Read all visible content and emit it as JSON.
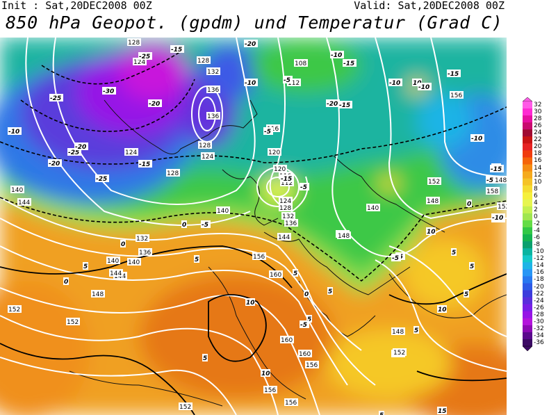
{
  "header": {
    "init": "Init : Sat,20DEC2008 00Z",
    "valid": "Valid: Sat,20DEC2008 00Z",
    "title": "850 hPa Geopot. (gpdm) und Temperatur (Grad C)"
  },
  "colorbar": {
    "labels": [
      "32",
      "30",
      "28",
      "26",
      "24",
      "22",
      "20",
      "18",
      "16",
      "14",
      "12",
      "10",
      "8",
      "6",
      "4",
      "2",
      "0",
      "-2",
      "-4",
      "-6",
      "-8",
      "-10",
      "-12",
      "-14",
      "-16",
      "-18",
      "-20",
      "-22",
      "-24",
      "-26",
      "-28",
      "-30",
      "-32",
      "-34",
      "-36"
    ],
    "colors": [
      "#ff5be6",
      "#ff2ad2",
      "#e60fa0",
      "#c80a6e",
      "#a00a32",
      "#c81414",
      "#e62323",
      "#f03c0f",
      "#f5640a",
      "#f58c14",
      "#f5aa1e",
      "#f5c328",
      "#f5dc32",
      "#f5f03c",
      "#e6f550",
      "#c3f050",
      "#a0e650",
      "#64dc46",
      "#32c846",
      "#14b450",
      "#0aa06e",
      "#0ab4a0",
      "#14c8c8",
      "#1eb4e6",
      "#2896f5",
      "#2878f0",
      "#2d5ae6",
      "#3c3cdc",
      "#5a2ddc",
      "#781ee6",
      "#9614e6",
      "#b414dc",
      "#8c0ab4",
      "#5a0a8c",
      "#3c0a64"
    ]
  },
  "map": {
    "geopotential_labels": [
      "128",
      "124",
      "128",
      "132",
      "136",
      "136",
      "128",
      "112",
      "108",
      "116",
      "120",
      "124",
      "124",
      "128",
      "120",
      "116",
      "112",
      "124",
      "128",
      "132",
      "136",
      "140",
      "140",
      "144",
      "140",
      "144",
      "148",
      "152",
      "144",
      "148",
      "152",
      "156",
      "160",
      "156",
      "160",
      "152",
      "148",
      "152",
      "156",
      "160",
      "156",
      "132",
      "136",
      "140",
      "144",
      "148",
      "152",
      "156",
      "148",
      "140",
      "152",
      "158",
      "148",
      "152",
      "152"
    ],
    "temperature_labels": [
      "-25",
      "-15",
      "-20",
      "-30",
      "-25",
      "-20",
      "-25",
      "-20",
      "-25",
      "-20",
      "-15",
      "-10",
      "-10",
      "-15",
      "-20",
      "-15",
      "-10",
      "-5",
      "-5",
      "-10",
      "-5",
      "-5",
      "-15",
      "-10",
      "10",
      "-10",
      "-15",
      "-5",
      "0",
      "-5",
      "0",
      "5",
      "0",
      "5",
      "5",
      "10",
      "5",
      "0",
      "5",
      "5",
      "10",
      "5",
      "10",
      "5",
      "5",
      "-5",
      "-5",
      "0",
      "5",
      "5",
      "10",
      "15",
      "-5",
      "-15",
      "-10"
    ]
  }
}
